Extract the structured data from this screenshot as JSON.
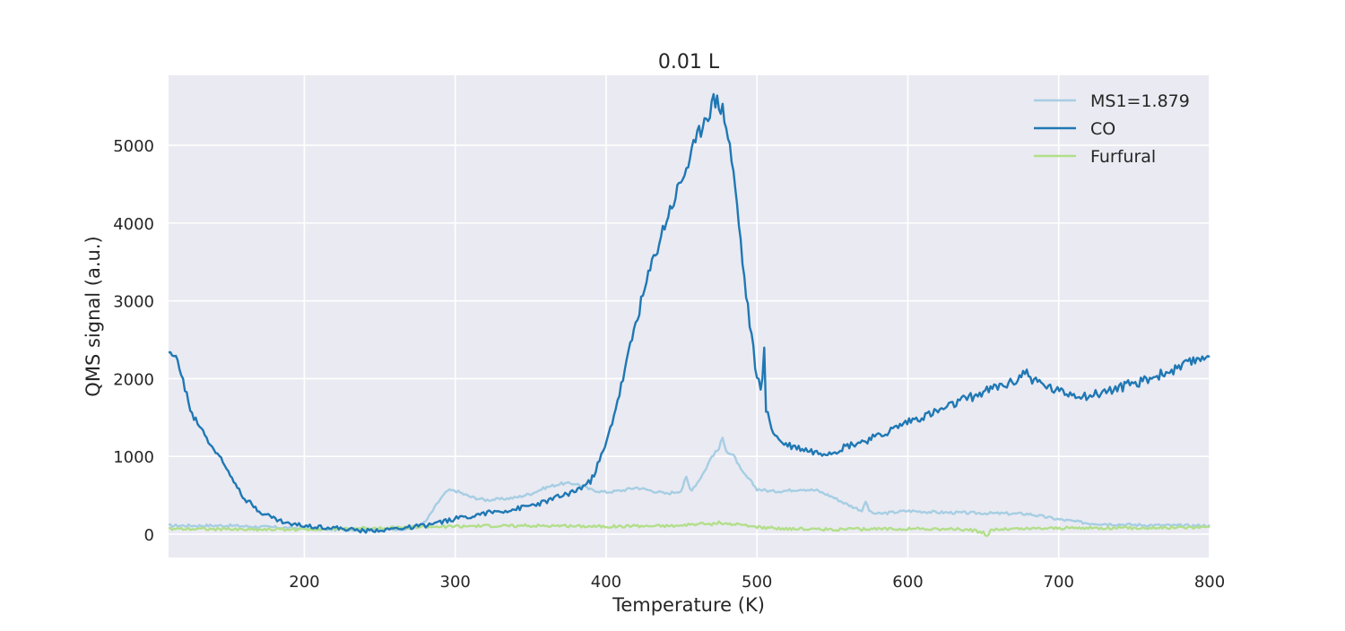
{
  "chart_data": {
    "type": "line",
    "title": "0.01 L",
    "xlabel": "Temperature (K)",
    "ylabel": "QMS signal (a.u.)",
    "xlim": [
      110,
      800
    ],
    "ylim": [
      -300,
      5900
    ],
    "xticks": [
      200,
      300,
      400,
      500,
      600,
      700,
      800
    ],
    "yticks": [
      0,
      1000,
      2000,
      3000,
      4000,
      5000
    ],
    "grid": true,
    "background": "#eaeaf2",
    "legend_position": "top-right",
    "series": [
      {
        "name": "MS1=1.879",
        "color": "#a6cee3",
        "x": [
          110,
          150,
          190,
          220,
          250,
          270,
          280,
          285,
          290,
          295,
          300,
          310,
          320,
          330,
          340,
          350,
          360,
          370,
          380,
          390,
          400,
          410,
          420,
          430,
          440,
          450,
          453,
          456,
          460,
          465,
          470,
          475,
          477,
          480,
          485,
          490,
          495,
          500,
          510,
          520,
          530,
          540,
          550,
          560,
          570,
          572,
          575,
          580,
          600,
          620,
          650,
          680,
          700,
          720,
          750,
          780,
          800
        ],
        "y": [
          110,
          110,
          80,
          60,
          60,
          70,
          150,
          300,
          450,
          560,
          560,
          480,
          440,
          450,
          470,
          520,
          600,
          650,
          650,
          570,
          540,
          560,
          600,
          560,
          520,
          560,
          740,
          560,
          650,
          800,
          1000,
          1100,
          1250,
          1060,
          1000,
          800,
          700,
          580,
          550,
          560,
          580,
          560,
          480,
          380,
          300,
          420,
          280,
          260,
          300,
          280,
          270,
          260,
          190,
          140,
          120,
          110,
          110
        ]
      },
      {
        "name": "CO",
        "color": "#1f78b4",
        "x": [
          110,
          113,
          115,
          118,
          122,
          126,
          130,
          135,
          140,
          145,
          150,
          155,
          160,
          170,
          180,
          190,
          200,
          220,
          240,
          260,
          270,
          280,
          290,
          300,
          320,
          340,
          360,
          380,
          390,
          400,
          410,
          420,
          430,
          440,
          450,
          460,
          465,
          470,
          472,
          475,
          478,
          482,
          487,
          492,
          500,
          503,
          505,
          506,
          510,
          515,
          520,
          530,
          540,
          550,
          560,
          580,
          600,
          620,
          640,
          660,
          670,
          678,
          682,
          690,
          700,
          720,
          740,
          760,
          780,
          800
        ],
        "y": [
          2300,
          2280,
          2350,
          2050,
          1800,
          1500,
          1430,
          1250,
          1100,
          950,
          800,
          650,
          470,
          300,
          200,
          130,
          110,
          80,
          40,
          70,
          90,
          110,
          150,
          200,
          270,
          320,
          420,
          560,
          680,
          1150,
          1900,
          2750,
          3450,
          4050,
          4550,
          5050,
          5350,
          5500,
          5580,
          5550,
          5400,
          5000,
          4200,
          3200,
          2000,
          1900,
          2400,
          1600,
          1350,
          1200,
          1150,
          1100,
          1050,
          1060,
          1140,
          1250,
          1450,
          1580,
          1750,
          1900,
          1950,
          2100,
          2000,
          1920,
          1830,
          1780,
          1880,
          2000,
          2130,
          2320
        ]
      },
      {
        "name": "Furfural",
        "color": "#b2df8a",
        "x": [
          110,
          130,
          160,
          200,
          250,
          300,
          350,
          400,
          450,
          460,
          470,
          475,
          480,
          490,
          500,
          520,
          550,
          600,
          640,
          650,
          652,
          655,
          700,
          750,
          800
        ],
        "y": [
          70,
          70,
          60,
          60,
          80,
          100,
          110,
          100,
          110,
          130,
          130,
          150,
          130,
          120,
          90,
          70,
          60,
          70,
          60,
          20,
          -50,
          60,
          80,
          80,
          90
        ]
      }
    ]
  }
}
